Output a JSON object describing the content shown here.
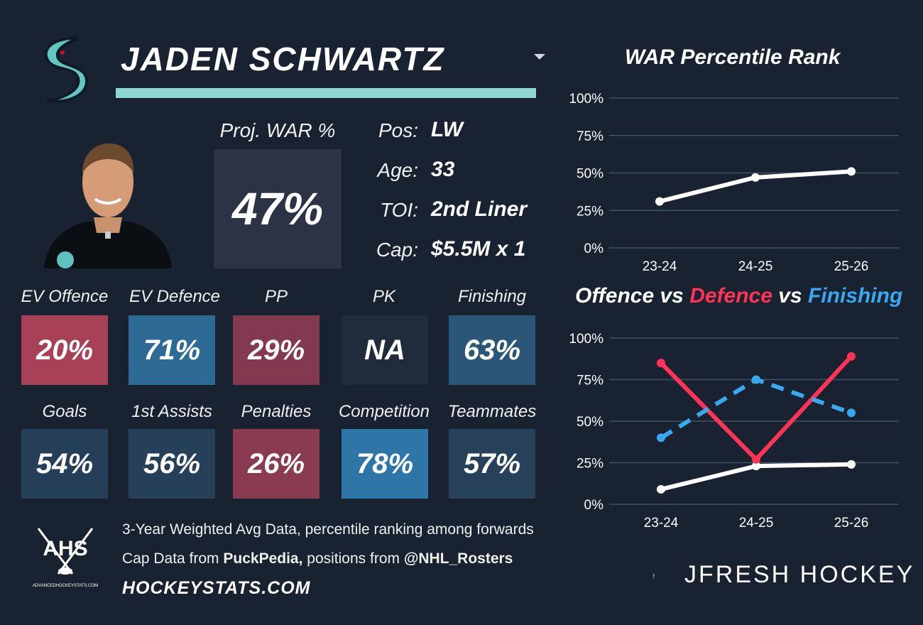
{
  "player": {
    "name": "JADEN SCHWARTZ",
    "proj_war_label": "Proj. WAR %",
    "proj_war_value": "47%"
  },
  "info": [
    {
      "label": "Pos:",
      "value": "LW"
    },
    {
      "label": "Age:",
      "value": "33"
    },
    {
      "label": "TOI:",
      "value": "2nd Liner"
    },
    {
      "label": "Cap:",
      "value": "$5.5M x 1"
    }
  ],
  "stats": [
    {
      "label": "EV Offence",
      "value": "20%",
      "color": "#a84058"
    },
    {
      "label": "EV Defence",
      "value": "71%",
      "color": "#2d6a94"
    },
    {
      "label": "PP",
      "value": "29%",
      "color": "#83394f"
    },
    {
      "label": "PK",
      "value": "NA",
      "color": "#202c3b"
    },
    {
      "label": "Finishing",
      "value": "63%",
      "color": "#2b5677"
    },
    {
      "label": "Goals",
      "value": "54%",
      "color": "#253f58"
    },
    {
      "label": "1st Assists",
      "value": "56%",
      "color": "#26405a"
    },
    {
      "label": "Penalties",
      "value": "26%",
      "color": "#8a3b52"
    },
    {
      "label": "Competition",
      "value": "78%",
      "color": "#2e76a8"
    },
    {
      "label": "Teammates",
      "value": "57%",
      "color": "#27415b"
    }
  ],
  "footer": {
    "line1": "3-Year Weighted Avg Data, percentile ranking among forwards",
    "line2_prefix": "Cap Data from ",
    "line2_source": "PuckPedia,",
    "line2_mid": " positions from ",
    "line2_handle": "@NHL_Rosters",
    "url": "HOCKEYSTATS.COM",
    "ahs_logo_text": "AHS",
    "ahs_logo_sub": "ADVANCEDHOCKEYSTATS.COM",
    "brand": "JFRESH HOCKEY"
  },
  "chart_data": [
    {
      "type": "line",
      "title": "WAR Percentile Rank",
      "x": [
        "23-24",
        "24-25",
        "25-26"
      ],
      "series": [
        {
          "name": "WAR",
          "values": [
            31,
            47,
            51
          ],
          "color": "#ffffff",
          "dashed": false
        }
      ],
      "ylim": [
        0,
        100
      ],
      "yticks": [
        0,
        25,
        50,
        75,
        100
      ],
      "ytick_labels": [
        "0%",
        "25%",
        "50%",
        "75%",
        "100%"
      ],
      "grid": true
    },
    {
      "type": "line",
      "title_parts": [
        {
          "text": "Offence",
          "color": "#ffffff"
        },
        {
          "text": " vs ",
          "color": "#ffffff"
        },
        {
          "text": "Defence",
          "color": "#ff3355"
        },
        {
          "text": " vs ",
          "color": "#ffffff"
        },
        {
          "text": "Finishing",
          "color": "#3aa8f0"
        }
      ],
      "x": [
        "23-24",
        "24-25",
        "25-26"
      ],
      "series": [
        {
          "name": "Offence",
          "values": [
            9,
            23,
            24
          ],
          "color": "#ffffff",
          "dashed": false
        },
        {
          "name": "Defence",
          "values": [
            85,
            27,
            89
          ],
          "color": "#ff3355",
          "dashed": false
        },
        {
          "name": "Finishing",
          "values": [
            40,
            75,
            55
          ],
          "color": "#3aa8f0",
          "dashed": true
        }
      ],
      "ylim": [
        0,
        100
      ],
      "yticks": [
        0,
        25,
        50,
        75,
        100
      ],
      "ytick_labels": [
        "0%",
        "25%",
        "50%",
        "75%",
        "100%"
      ],
      "grid": true
    }
  ]
}
